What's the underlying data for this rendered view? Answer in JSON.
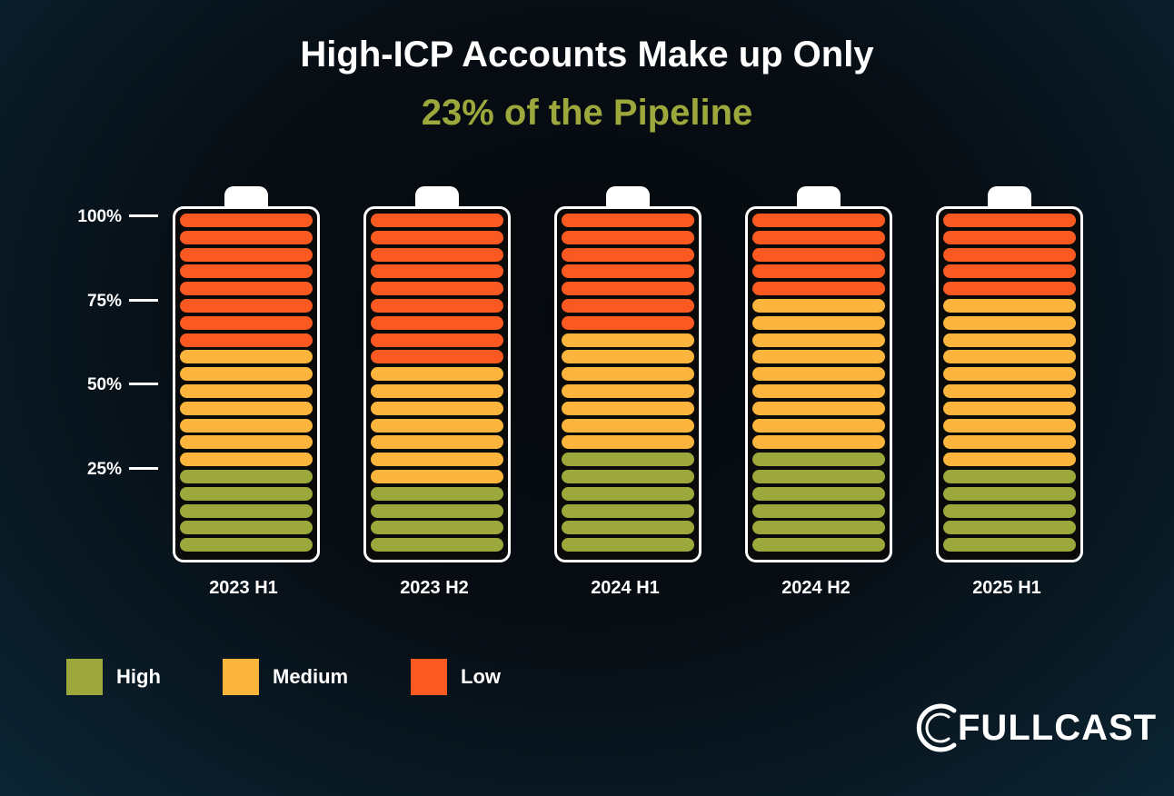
{
  "title": {
    "line1": "High-ICP Accounts Make up Only",
    "line2": "23% of the Pipeline"
  },
  "colors": {
    "high": "#9da83c",
    "medium": "#fbb53c",
    "low": "#fa5a22"
  },
  "chart_data": {
    "type": "bar",
    "stacked": true,
    "y_axis": {
      "ticks": [
        "100%",
        "75%",
        "50%",
        "25%"
      ],
      "range": [
        0,
        100
      ]
    },
    "categories": [
      "2023 H1",
      "2023 H2",
      "2024 H1",
      "2024 H2",
      "2025 H1"
    ],
    "segments_total": 20,
    "series": [
      {
        "name": "High",
        "values": [
          5,
          4,
          6,
          6,
          5
        ]
      },
      {
        "name": "Medium",
        "values": [
          7,
          7,
          7,
          9,
          10
        ]
      },
      {
        "name": "Low",
        "values": [
          8,
          9,
          7,
          5,
          5
        ]
      }
    ],
    "legend": {
      "position": "bottom-left",
      "items": [
        "High",
        "Medium",
        "Low"
      ]
    }
  },
  "brand": {
    "logo_text": "FULLCAST"
  }
}
